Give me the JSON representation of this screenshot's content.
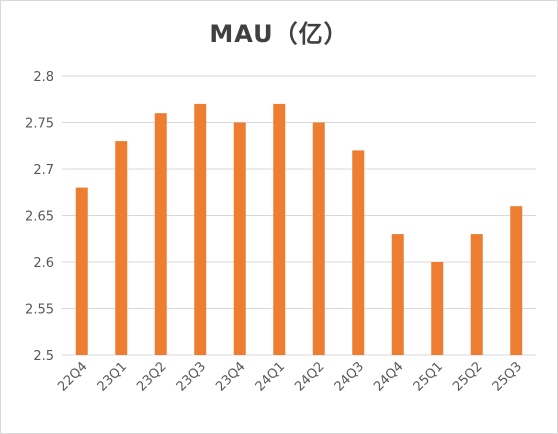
{
  "chart_data": {
    "type": "bar",
    "title": "MAU（亿）",
    "xlabel": "",
    "ylabel": "",
    "categories": [
      "22Q4",
      "23Q1",
      "23Q2",
      "23Q3",
      "23Q4",
      "24Q1",
      "24Q2",
      "24Q3",
      "24Q4",
      "25Q1",
      "25Q2",
      "25Q3"
    ],
    "values": [
      2.68,
      2.73,
      2.76,
      2.77,
      2.75,
      2.77,
      2.75,
      2.72,
      2.63,
      2.6,
      2.63,
      2.66
    ],
    "ylim": [
      2.5,
      2.8
    ],
    "yticks": [
      "2.5",
      "2.55",
      "2.6",
      "2.65",
      "2.7",
      "2.75",
      "2.8"
    ],
    "grid": true,
    "legend": "none",
    "colors": {
      "bar": "#ED7D31",
      "grid": "#D9D9D9",
      "text": "#595959",
      "title": "#404040"
    }
  }
}
